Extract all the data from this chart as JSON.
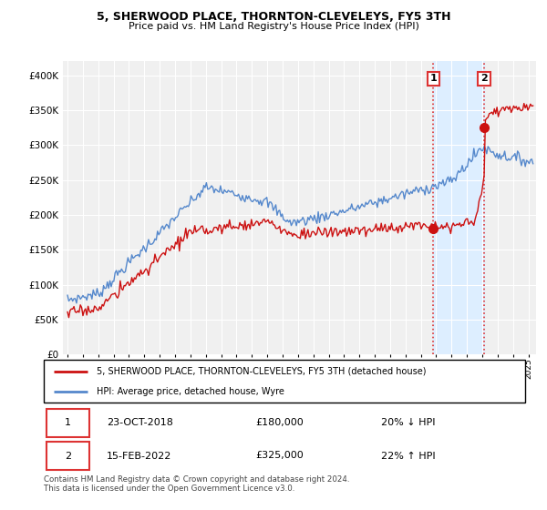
{
  "title": "5, SHERWOOD PLACE, THORNTON-CLEVELEYS, FY5 3TH",
  "subtitle": "Price paid vs. HM Land Registry's House Price Index (HPI)",
  "ytick_values": [
    0,
    50000,
    100000,
    150000,
    200000,
    250000,
    300000,
    350000,
    400000
  ],
  "ylim": [
    0,
    420000
  ],
  "xlim_start": 1994.7,
  "xlim_end": 2025.5,
  "hpi_color": "#5588cc",
  "price_color": "#cc1111",
  "sale1_date": 2018.81,
  "sale1_price": 180000,
  "sale1_label": "1",
  "sale2_date": 2022.12,
  "sale2_price": 325000,
  "sale2_label": "2",
  "vline_color": "#dd3333",
  "highlight_color": "#ddeeff",
  "legend_label_price": "5, SHERWOOD PLACE, THORNTON-CLEVELEYS, FY5 3TH (detached house)",
  "legend_label_hpi": "HPI: Average price, detached house, Wyre",
  "table_row1": [
    "1",
    "23-OCT-2018",
    "£180,000",
    "20% ↓ HPI"
  ],
  "table_row2": [
    "2",
    "15-FEB-2022",
    "£325,000",
    "22% ↑ HPI"
  ],
  "footnote": "Contains HM Land Registry data © Crown copyright and database right 2024.\nThis data is licensed under the Open Government Licence v3.0.",
  "plot_bg_color": "#f0f0f0",
  "grid_color": "#ffffff"
}
